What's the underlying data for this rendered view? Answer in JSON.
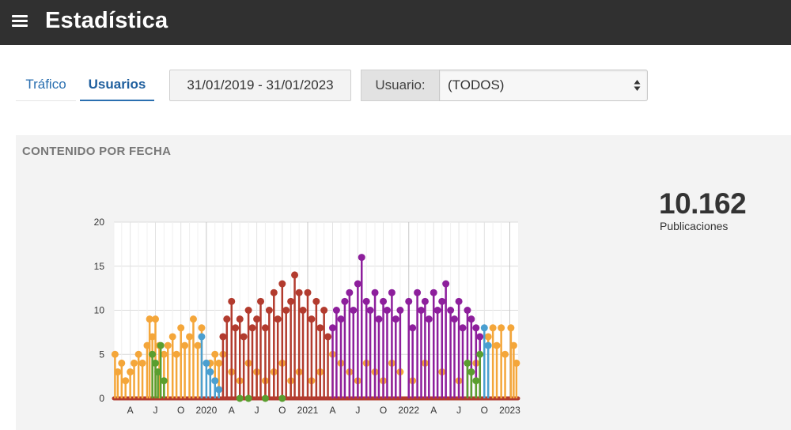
{
  "header": {
    "title": "Estadística",
    "menu_icon": "hamburger-menu-icon"
  },
  "tabs": [
    {
      "label": "Tráfico",
      "active": false
    },
    {
      "label": "Usuarios",
      "active": true
    }
  ],
  "filters": {
    "date_range": "31/01/2019 - 31/01/2023",
    "user_label": "Usuario:",
    "user_selected": "(TODOS)"
  },
  "panel": {
    "title": "CONTENIDO POR FECHA",
    "total_value": "10.162",
    "total_label": "Publicaciones"
  },
  "colors": {
    "orange": "#f4a63a",
    "red": "#b23b2e",
    "purple": "#8d1f9c",
    "green": "#5a9e2f",
    "blue": "#4a9fd0"
  },
  "chart_data": {
    "type": "scatter",
    "ylim": [
      0,
      20
    ],
    "yticks": [
      "0",
      "5",
      "10",
      "15",
      "20"
    ],
    "xlim": [
      "2019-02-01",
      "2023-01-31"
    ],
    "xticks": [
      {
        "date": "2019-04-01",
        "label": "A"
      },
      {
        "date": "2019-07-01",
        "label": "J"
      },
      {
        "date": "2019-10-01",
        "label": "O"
      },
      {
        "date": "2020-01-01",
        "label": "2020"
      },
      {
        "date": "2020-04-01",
        "label": "A"
      },
      {
        "date": "2020-07-01",
        "label": "J"
      },
      {
        "date": "2020-10-01",
        "label": "O"
      },
      {
        "date": "2021-01-01",
        "label": "2021"
      },
      {
        "date": "2021-04-01",
        "label": "A"
      },
      {
        "date": "2021-07-01",
        "label": "J"
      },
      {
        "date": "2021-10-01",
        "label": "O"
      },
      {
        "date": "2022-01-01",
        "label": "2022"
      },
      {
        "date": "2022-04-01",
        "label": "A"
      },
      {
        "date": "2022-07-01",
        "label": "J"
      },
      {
        "date": "2022-10-01",
        "label": "O"
      },
      {
        "date": "2023-01-01",
        "label": "2023"
      }
    ],
    "series": [
      {
        "color": "#f4a63a",
        "points": [
          [
            "2019-02-05",
            5
          ],
          [
            "2019-02-15",
            3
          ],
          [
            "2019-03-01",
            4
          ],
          [
            "2019-03-15",
            2
          ],
          [
            "2019-04-01",
            3
          ],
          [
            "2019-04-15",
            4
          ],
          [
            "2019-05-01",
            5
          ],
          [
            "2019-05-15",
            4
          ],
          [
            "2019-06-01",
            6
          ],
          [
            "2019-06-10",
            9
          ],
          [
            "2019-06-20",
            7
          ],
          [
            "2019-07-01",
            9
          ],
          [
            "2019-07-15",
            6
          ],
          [
            "2019-08-01",
            5
          ],
          [
            "2019-08-15",
            6
          ],
          [
            "2019-09-01",
            7
          ],
          [
            "2019-09-15",
            5
          ],
          [
            "2019-10-01",
            8
          ],
          [
            "2019-10-15",
            6
          ],
          [
            "2019-11-01",
            7
          ],
          [
            "2019-11-15",
            9
          ],
          [
            "2019-12-01",
            6
          ],
          [
            "2019-12-15",
            8
          ],
          [
            "2020-01-15",
            4
          ],
          [
            "2020-02-01",
            5
          ],
          [
            "2020-02-15",
            4
          ],
          [
            "2020-03-01",
            5
          ],
          [
            "2020-04-01",
            3
          ],
          [
            "2020-05-01",
            2
          ],
          [
            "2020-06-01",
            4
          ],
          [
            "2020-07-01",
            3
          ],
          [
            "2020-08-01",
            2
          ],
          [
            "2020-09-01",
            3
          ],
          [
            "2020-10-01",
            4
          ],
          [
            "2020-11-01",
            2
          ],
          [
            "2020-12-01",
            3
          ],
          [
            "2021-01-15",
            2
          ],
          [
            "2021-02-15",
            3
          ],
          [
            "2021-04-01",
            5
          ],
          [
            "2021-05-01",
            4
          ],
          [
            "2021-06-01",
            3
          ],
          [
            "2021-07-01",
            2
          ],
          [
            "2021-08-01",
            4
          ],
          [
            "2021-09-01",
            3
          ],
          [
            "2021-10-01",
            2
          ],
          [
            "2021-11-01",
            4
          ],
          [
            "2021-12-01",
            3
          ],
          [
            "2022-01-15",
            2
          ],
          [
            "2022-03-01",
            4
          ],
          [
            "2022-05-01",
            3
          ],
          [
            "2022-07-01",
            2
          ],
          [
            "2022-09-01",
            4
          ],
          [
            "2022-10-15",
            7
          ],
          [
            "2022-11-01",
            8
          ],
          [
            "2022-11-15",
            6
          ],
          [
            "2022-12-01",
            8
          ],
          [
            "2022-12-15",
            5
          ],
          [
            "2023-01-05",
            8
          ],
          [
            "2023-01-15",
            6
          ],
          [
            "2023-01-25",
            4
          ]
        ]
      },
      {
        "color": "#b23b2e",
        "points": [
          [
            "2020-03-01",
            7
          ],
          [
            "2020-03-15",
            9
          ],
          [
            "2020-04-01",
            11
          ],
          [
            "2020-04-15",
            8
          ],
          [
            "2020-05-01",
            9
          ],
          [
            "2020-05-15",
            7
          ],
          [
            "2020-06-01",
            10
          ],
          [
            "2020-06-15",
            8
          ],
          [
            "2020-07-01",
            9
          ],
          [
            "2020-07-15",
            11
          ],
          [
            "2020-08-01",
            8
          ],
          [
            "2020-08-15",
            10
          ],
          [
            "2020-09-01",
            12
          ],
          [
            "2020-09-15",
            9
          ],
          [
            "2020-10-01",
            13
          ],
          [
            "2020-10-15",
            10
          ],
          [
            "2020-11-01",
            11
          ],
          [
            "2020-11-15",
            14
          ],
          [
            "2020-12-01",
            12
          ],
          [
            "2020-12-15",
            10
          ],
          [
            "2021-01-01",
            12
          ],
          [
            "2021-01-15",
            9
          ],
          [
            "2021-02-01",
            11
          ],
          [
            "2021-02-15",
            8
          ],
          [
            "2021-03-01",
            10
          ],
          [
            "2021-03-15",
            7
          ]
        ]
      },
      {
        "color": "#8d1f9c",
        "points": [
          [
            "2021-04-01",
            8
          ],
          [
            "2021-04-15",
            10
          ],
          [
            "2021-05-01",
            9
          ],
          [
            "2021-05-15",
            11
          ],
          [
            "2021-06-01",
            12
          ],
          [
            "2021-06-15",
            10
          ],
          [
            "2021-07-01",
            13
          ],
          [
            "2021-07-15",
            16
          ],
          [
            "2021-08-01",
            11
          ],
          [
            "2021-08-15",
            10
          ],
          [
            "2021-09-01",
            12
          ],
          [
            "2021-09-15",
            9
          ],
          [
            "2021-10-01",
            11
          ],
          [
            "2021-10-15",
            10
          ],
          [
            "2021-11-01",
            12
          ],
          [
            "2021-11-15",
            9
          ],
          [
            "2021-12-01",
            10
          ],
          [
            "2022-01-01",
            11
          ],
          [
            "2022-01-15",
            8
          ],
          [
            "2022-02-01",
            12
          ],
          [
            "2022-02-15",
            10
          ],
          [
            "2022-03-01",
            11
          ],
          [
            "2022-03-15",
            9
          ],
          [
            "2022-04-01",
            12
          ],
          [
            "2022-04-15",
            10
          ],
          [
            "2022-05-01",
            11
          ],
          [
            "2022-05-15",
            13
          ],
          [
            "2022-06-01",
            10
          ],
          [
            "2022-06-15",
            9
          ],
          [
            "2022-07-01",
            11
          ],
          [
            "2022-07-15",
            8
          ],
          [
            "2022-08-01",
            10
          ],
          [
            "2022-08-15",
            9
          ],
          [
            "2022-09-01",
            8
          ],
          [
            "2022-09-15",
            7
          ]
        ]
      },
      {
        "color": "#5a9e2f",
        "points": [
          [
            "2019-06-20",
            5
          ],
          [
            "2019-07-01",
            4
          ],
          [
            "2019-07-10",
            3
          ],
          [
            "2019-07-20",
            6
          ],
          [
            "2019-08-01",
            2
          ],
          [
            "2020-05-01",
            0
          ],
          [
            "2020-06-01",
            0
          ],
          [
            "2020-08-01",
            0
          ],
          [
            "2020-10-01",
            0
          ],
          [
            "2022-08-01",
            4
          ],
          [
            "2022-08-15",
            3
          ],
          [
            "2022-09-01",
            2
          ],
          [
            "2022-09-15",
            5
          ]
        ]
      },
      {
        "color": "#4a9fd0",
        "points": [
          [
            "2019-12-15",
            7
          ],
          [
            "2020-01-01",
            4
          ],
          [
            "2020-01-15",
            3
          ],
          [
            "2020-02-01",
            2
          ],
          [
            "2020-02-15",
            1
          ],
          [
            "2022-10-01",
            8
          ],
          [
            "2022-10-15",
            6
          ]
        ]
      }
    ]
  }
}
